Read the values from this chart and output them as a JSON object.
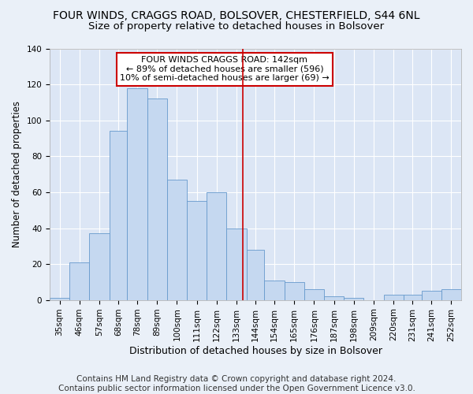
{
  "title1": "FOUR WINDS, CRAGGS ROAD, BOLSOVER, CHESTERFIELD, S44 6NL",
  "title2": "Size of property relative to detached houses in Bolsover",
  "xlabel": "Distribution of detached houses by size in Bolsover",
  "ylabel": "Number of detached properties",
  "footer1": "Contains HM Land Registry data © Crown copyright and database right 2024.",
  "footer2": "Contains public sector information licensed under the Open Government Licence v3.0.",
  "annotation_line1": "FOUR WINDS CRAGGS ROAD: 142sqm",
  "annotation_line2": "← 89% of detached houses are smaller (596)",
  "annotation_line3": "10% of semi-detached houses are larger (69) →",
  "property_size": 142,
  "bar_labels": [
    "35sqm",
    "46sqm",
    "57sqm",
    "68sqm",
    "78sqm",
    "89sqm",
    "100sqm",
    "111sqm",
    "122sqm",
    "133sqm",
    "144sqm",
    "154sqm",
    "165sqm",
    "176sqm",
    "187sqm",
    "198sqm",
    "209sqm",
    "220sqm",
    "231sqm",
    "241sqm",
    "252sqm"
  ],
  "bar_values": [
    1,
    21,
    37,
    94,
    118,
    112,
    67,
    55,
    60,
    40,
    28,
    11,
    10,
    6,
    2,
    1,
    0,
    3,
    3,
    5,
    6
  ],
  "bar_edges": [
    35,
    46,
    57,
    68,
    78,
    89,
    100,
    111,
    122,
    133,
    144,
    154,
    165,
    176,
    187,
    198,
    209,
    220,
    231,
    241,
    252,
    263
  ],
  "bar_color": "#c5d8f0",
  "bar_edgecolor": "#6699cc",
  "vline_x": 142,
  "vline_color": "#cc0000",
  "annotation_box_edgecolor": "#cc0000",
  "ylim": [
    0,
    140
  ],
  "background_color": "#dce6f5",
  "fig_background_color": "#eaf0f8",
  "grid_color": "#ffffff",
  "title1_fontsize": 10,
  "title2_fontsize": 9.5,
  "ylabel_fontsize": 8.5,
  "xlabel_fontsize": 9,
  "tick_fontsize": 7.5,
  "footer_fontsize": 7.5,
  "annotation_fontsize": 8
}
